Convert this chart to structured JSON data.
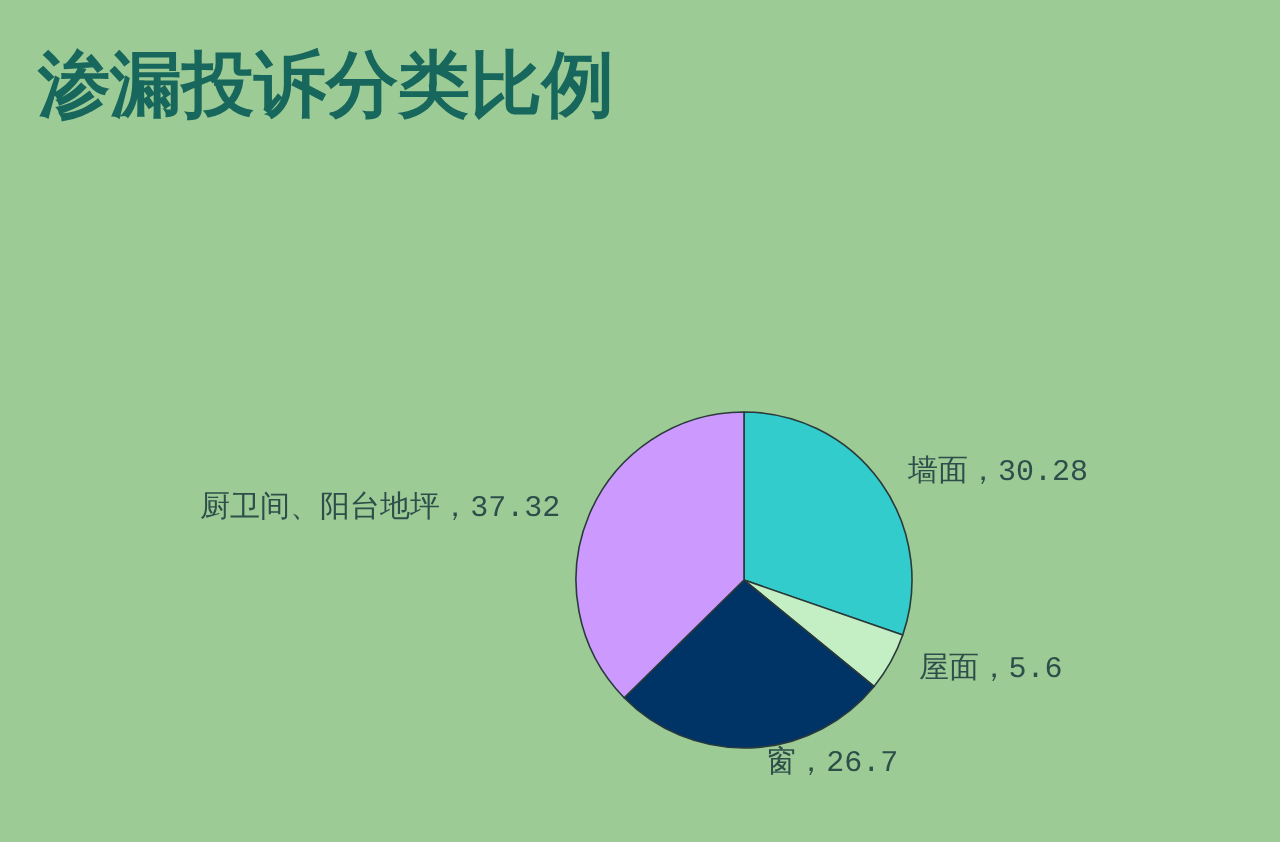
{
  "chart_data": {
    "type": "pie",
    "title": "渗漏投诉分类比例",
    "categories": [
      "墙面",
      "屋面",
      "窗",
      "厨卫间、阳台地坪"
    ],
    "values": [
      30.28,
      5.6,
      26.7,
      37.32
    ],
    "colors": [
      "#33cccc",
      "#c4eec4",
      "#003366",
      "#cc99ff"
    ],
    "value_labels": [
      "，30.28",
      "，5.6",
      "，26.7",
      "，37.32"
    ],
    "legend": false
  }
}
